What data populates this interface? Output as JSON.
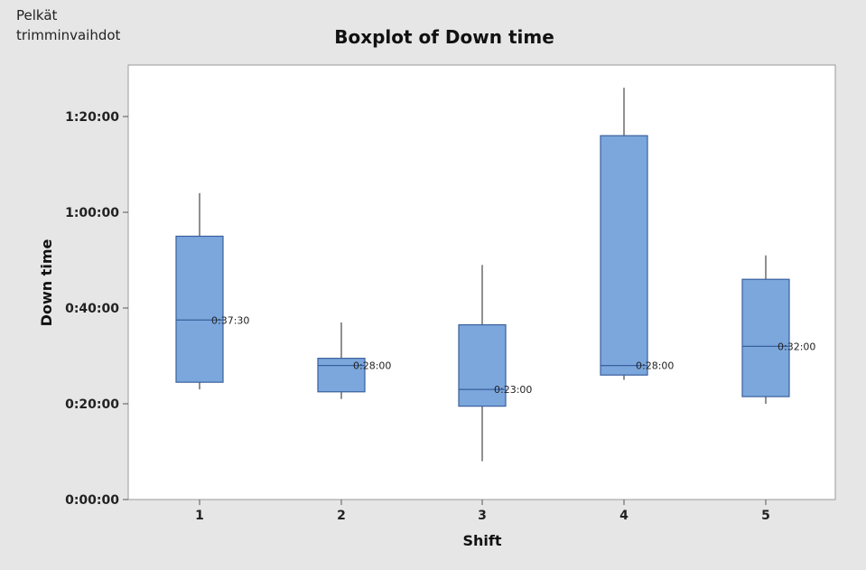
{
  "note": {
    "line1": "Pelkät",
    "line2": "trimminvaihdot"
  },
  "chart_data": {
    "type": "boxplot",
    "title": "Boxplot of Down time",
    "xlabel": "Shift",
    "ylabel": "Down time",
    "categories": [
      "1",
      "2",
      "3",
      "4",
      "5"
    ],
    "y_unit": "minutes",
    "ylim": [
      0,
      90
    ],
    "yticks": [
      {
        "value": 0,
        "label": "0:00:00"
      },
      {
        "value": 20,
        "label": "0:20:00"
      },
      {
        "value": 40,
        "label": "0:40:00"
      },
      {
        "value": 60,
        "label": "1:00:00"
      },
      {
        "value": 80,
        "label": "1:20:00"
      }
    ],
    "boxes": [
      {
        "category": "1",
        "min": 23,
        "q1": 24.5,
        "median": 37.5,
        "q3": 55,
        "max": 64,
        "median_label": "0:37:30"
      },
      {
        "category": "2",
        "min": 21,
        "q1": 22.5,
        "median": 28,
        "q3": 29.5,
        "max": 37,
        "median_label": "0:28:00"
      },
      {
        "category": "3",
        "min": 8,
        "q1": 19.5,
        "median": 23,
        "q3": 36.5,
        "max": 49,
        "median_label": "0:23:00"
      },
      {
        "category": "4",
        "min": 25,
        "q1": 26,
        "median": 28,
        "q3": 76,
        "max": 86,
        "median_label": "0:28:00"
      },
      {
        "category": "5",
        "min": 20,
        "q1": 21.5,
        "median": 32,
        "q3": 46,
        "max": 51,
        "median_label": "0:32:00"
      }
    ],
    "grid": false,
    "colors": {
      "box_fill": "#7ba7dc",
      "box_stroke": "#3a5f9e",
      "whisker": "#555555",
      "plot_bg": "#ffffff",
      "frame": "#999999"
    }
  }
}
